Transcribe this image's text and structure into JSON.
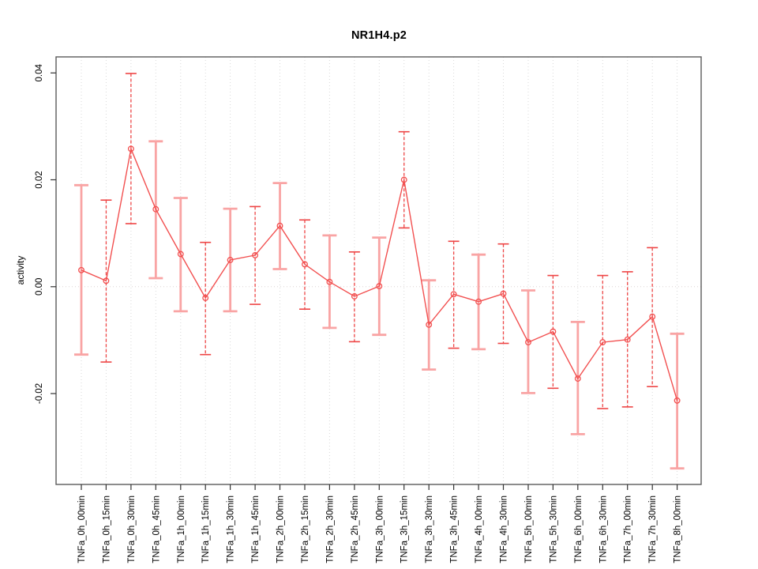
{
  "title": "NR1H4.p2",
  "chart_data": {
    "type": "line",
    "title": "NR1H4.p2",
    "xlabel": "",
    "ylabel": "activity",
    "legend": "none",
    "grid": "vertical dotted gridline at every category; dotted horizontal line at y=0",
    "ylim": [
      -0.037,
      0.043
    ],
    "yticks": [
      -0.02,
      0,
      0.02,
      0.04
    ],
    "ytick_labels": [
      "-0.02",
      "0.00",
      "0.02",
      "0.04"
    ],
    "categories": [
      "TNFa_0h_00min",
      "TNFa_0h_15min",
      "TNFa_0h_30min",
      "TNFa_0h_45min",
      "TNFa_1h_00min",
      "TNFa_1h_15min",
      "TNFa_1h_30min",
      "TNFa_1h_45min",
      "TNFa_2h_00min",
      "TNFa_2h_15min",
      "TNFa_2h_30min",
      "TNFa_2h_45min",
      "TNFa_3h_00min",
      "TNFa_3h_15min",
      "TNFa_3h_30min",
      "TNFa_3h_45min",
      "TNFa_4h_00min",
      "TNFa_4h_30min",
      "TNFa_5h_00min",
      "TNFa_5h_30min",
      "TNFa_6h_00min",
      "TNFa_6h_30min",
      "TNFa_7h_00min",
      "TNFa_7h_30min",
      "TNFa_8h_00min"
    ],
    "series": [
      {
        "name": "activity",
        "marker": "open-circle",
        "values": [
          0.0031,
          0.0011,
          0.0258,
          0.0145,
          0.0061,
          -0.0021,
          0.005,
          0.0059,
          0.0114,
          0.0042,
          0.0009,
          -0.0018,
          0.0001,
          0.02,
          -0.0071,
          -0.0014,
          -0.0028,
          -0.0013,
          -0.0104,
          -0.0084,
          -0.0172,
          -0.0104,
          -0.0099,
          -0.0056,
          -0.0213
        ],
        "error_upper": [
          0.019,
          0.0162,
          0.0399,
          0.0272,
          0.0166,
          0.0083,
          0.0146,
          0.015,
          0.0194,
          0.0125,
          0.0096,
          0.0065,
          0.0092,
          0.029,
          0.0012,
          0.0085,
          0.006,
          0.008,
          -0.0007,
          0.0021,
          -0.0066,
          0.0021,
          0.0028,
          0.0073,
          -0.0088
        ],
        "error_lower": [
          -0.0127,
          -0.0141,
          0.0118,
          0.0016,
          -0.0046,
          -0.0127,
          -0.0046,
          -0.0033,
          0.0033,
          -0.0042,
          -0.0077,
          -0.0103,
          -0.009,
          0.011,
          -0.0155,
          -0.0115,
          -0.0117,
          -0.0106,
          -0.0199,
          -0.019,
          -0.0276,
          -0.0228,
          -0.0225,
          -0.0187,
          -0.034
        ],
        "error_bar_styles": [
          "solid",
          "dashed",
          "dashed",
          "solid",
          "solid",
          "dashed",
          "solid",
          "dashed",
          "solid",
          "dashed",
          "solid",
          "dashed",
          "solid",
          "dashed",
          "solid",
          "dashed",
          "solid",
          "dashed",
          "solid",
          "dashed",
          "solid",
          "dashed",
          "dashed",
          "dashed",
          "solid"
        ]
      }
    ],
    "colors": {
      "point": "#f25050",
      "line": "#f25050",
      "error_solid": "#f9a4a4",
      "error_dashed": "#ee4545",
      "grid": "#d9d9d9",
      "zero_line": "#dcd4d4",
      "frame": "#5a5a5a",
      "tick": "#333333",
      "text": "#000000",
      "background": "#ffffff"
    }
  }
}
